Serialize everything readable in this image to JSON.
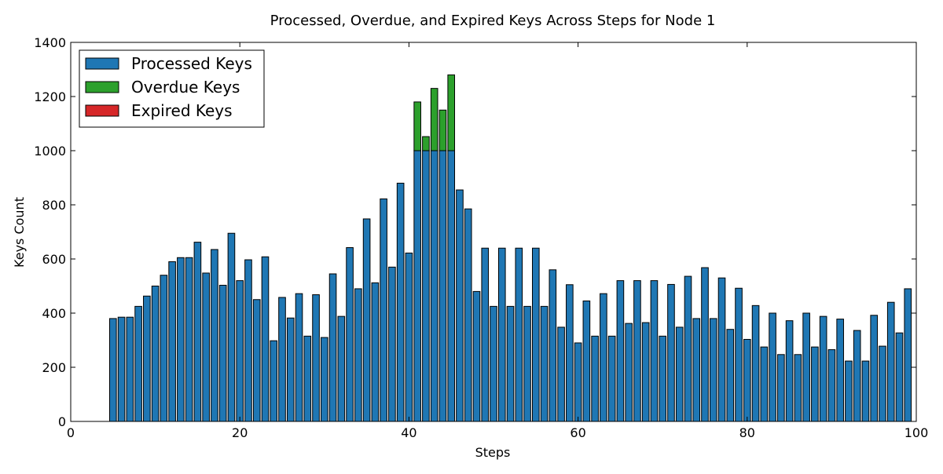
{
  "chart_data": {
    "type": "bar",
    "stacked": true,
    "title": "Processed, Overdue, and Expired Keys Across Steps for Node 1",
    "xlabel": "Steps",
    "ylabel": "Keys Count",
    "xlim": [
      0,
      100
    ],
    "ylim": [
      0,
      1400
    ],
    "xticks": [
      0,
      20,
      40,
      60,
      80,
      100
    ],
    "yticks": [
      0,
      200,
      400,
      600,
      800,
      1000,
      1200,
      1400
    ],
    "grid": false,
    "legend_position": "top-left",
    "x": [
      1,
      2,
      3,
      4,
      5,
      6,
      7,
      8,
      9,
      10,
      11,
      12,
      13,
      14,
      15,
      16,
      17,
      18,
      19,
      20,
      21,
      22,
      23,
      24,
      25,
      26,
      27,
      28,
      29,
      30,
      31,
      32,
      33,
      34,
      35,
      36,
      37,
      38,
      39,
      40,
      41,
      42,
      43,
      44,
      45,
      46,
      47,
      48,
      49,
      50,
      51,
      52,
      53,
      54,
      55,
      56,
      57,
      58,
      59,
      60,
      61,
      62,
      63,
      64,
      65,
      66,
      67,
      68,
      69,
      70,
      71,
      72,
      73,
      74,
      75,
      76,
      77,
      78,
      79,
      80,
      81,
      82,
      83,
      84,
      85,
      86,
      87,
      88,
      89,
      90,
      91,
      92,
      93,
      94,
      95,
      96,
      97,
      98,
      99
    ],
    "series": [
      {
        "name": "Processed Keys",
        "color": "#1f77b4",
        "values": [
          0,
          0,
          0,
          0,
          380,
          385,
          385,
          425,
          463,
          500,
          540,
          590,
          605,
          605,
          662,
          548,
          635,
          503,
          695,
          520,
          597,
          450,
          608,
          298,
          458,
          382,
          472,
          315,
          468,
          310,
          545,
          388,
          642,
          490,
          748,
          512,
          822,
          570,
          880,
          622,
          1000,
          1000,
          1000,
          1000,
          1000,
          855,
          785,
          480,
          640,
          425,
          640,
          425,
          640,
          425,
          640,
          425,
          560,
          348,
          505,
          290,
          445,
          315,
          472,
          315,
          520,
          362,
          520,
          365,
          520,
          315,
          506,
          348,
          536,
          380,
          568,
          380,
          530,
          340,
          492,
          303,
          428,
          275,
          400,
          247,
          372,
          247,
          400,
          275,
          388,
          265,
          378,
          223,
          336,
          223,
          392,
          278,
          440,
          327,
          490
        ]
      },
      {
        "name": "Overdue Keys",
        "color": "#2ca02c",
        "values": [
          0,
          0,
          0,
          0,
          0,
          0,
          0,
          0,
          0,
          0,
          0,
          0,
          0,
          0,
          0,
          0,
          0,
          0,
          0,
          0,
          0,
          0,
          0,
          0,
          0,
          0,
          0,
          0,
          0,
          0,
          0,
          0,
          0,
          0,
          0,
          0,
          0,
          0,
          0,
          0,
          180,
          52,
          230,
          150,
          280,
          0,
          0,
          0,
          0,
          0,
          0,
          0,
          0,
          0,
          0,
          0,
          0,
          0,
          0,
          0,
          0,
          0,
          0,
          0,
          0,
          0,
          0,
          0,
          0,
          0,
          0,
          0,
          0,
          0,
          0,
          0,
          0,
          0,
          0,
          0,
          0,
          0,
          0,
          0,
          0,
          0,
          0,
          0,
          0,
          0,
          0,
          0,
          0,
          0,
          0,
          0,
          0,
          0,
          0
        ]
      },
      {
        "name": "Expired Keys",
        "color": "#d62728",
        "values": [
          0,
          0,
          0,
          0,
          0,
          0,
          0,
          0,
          0,
          0,
          0,
          0,
          0,
          0,
          0,
          0,
          0,
          0,
          0,
          0,
          0,
          0,
          0,
          0,
          0,
          0,
          0,
          0,
          0,
          0,
          0,
          0,
          0,
          0,
          0,
          0,
          0,
          0,
          0,
          0,
          0,
          0,
          0,
          0,
          0,
          0,
          0,
          0,
          0,
          0,
          0,
          0,
          0,
          0,
          0,
          0,
          0,
          0,
          0,
          0,
          0,
          0,
          0,
          0,
          0,
          0,
          0,
          0,
          0,
          0,
          0,
          0,
          0,
          0,
          0,
          0,
          0,
          0,
          0,
          0,
          0,
          0,
          0,
          0,
          0,
          0,
          0,
          0,
          0,
          0,
          0,
          0,
          0,
          0,
          0,
          0,
          0,
          0,
          0
        ]
      }
    ]
  }
}
